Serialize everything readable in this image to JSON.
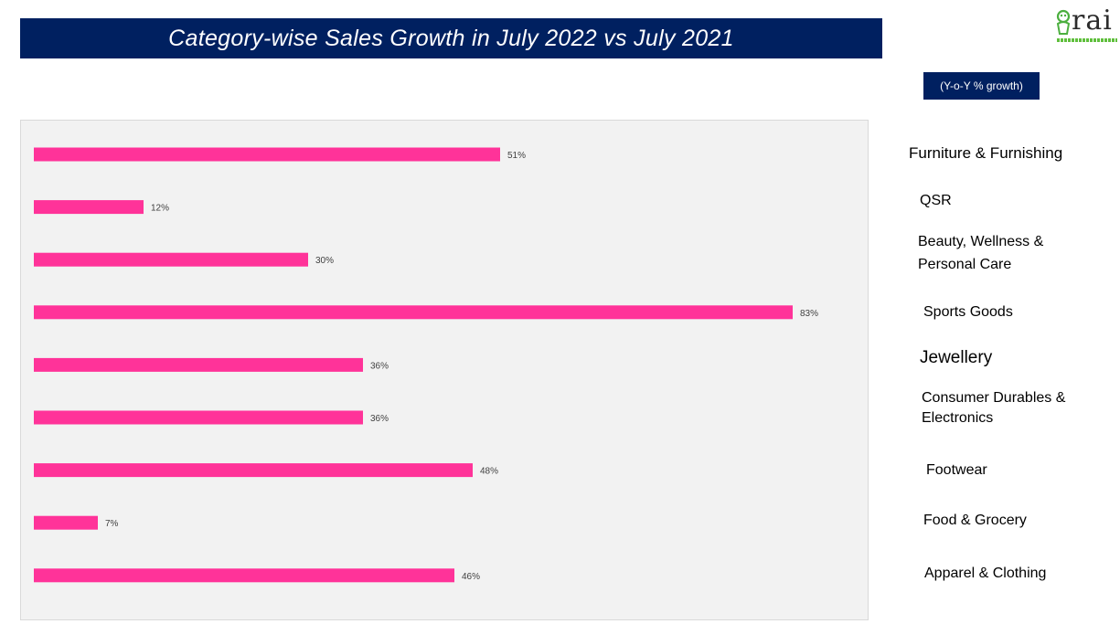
{
  "title": "Category-wise Sales Growth in July 2022 vs July 2021",
  "legend_note": "(Y-o-Y % growth)",
  "logo": {
    "text": "rai",
    "icon": "rai-mascot-icon"
  },
  "colors": {
    "bar": "#ff3399",
    "title_bg": "#002060",
    "plot_bg": "#f2f2f2"
  },
  "chart_data": {
    "type": "bar",
    "orientation": "horizontal",
    "title": "Category-wise Sales Growth in July 2022 vs July 2021",
    "xlabel": "",
    "ylabel": "",
    "unit": "%",
    "categories": [
      "Furniture & Furnishing",
      "QSR",
      "Beauty, Wellness & Personal Care",
      "Sports Goods",
      "Jewellery",
      "Consumer Durables & Electronics",
      "Footwear",
      "Food & Grocery",
      "Apparel & Clothing"
    ],
    "values": [
      51,
      12,
      30,
      83,
      36,
      36,
      48,
      7,
      46
    ],
    "data_labels": [
      "51%",
      "12%",
      "30%",
      "83%",
      "36%",
      "36%",
      "48%",
      "7%",
      "46%"
    ],
    "xlim": [
      0,
      90
    ],
    "grid": false,
    "legend": false,
    "category_labels_position": "right"
  }
}
